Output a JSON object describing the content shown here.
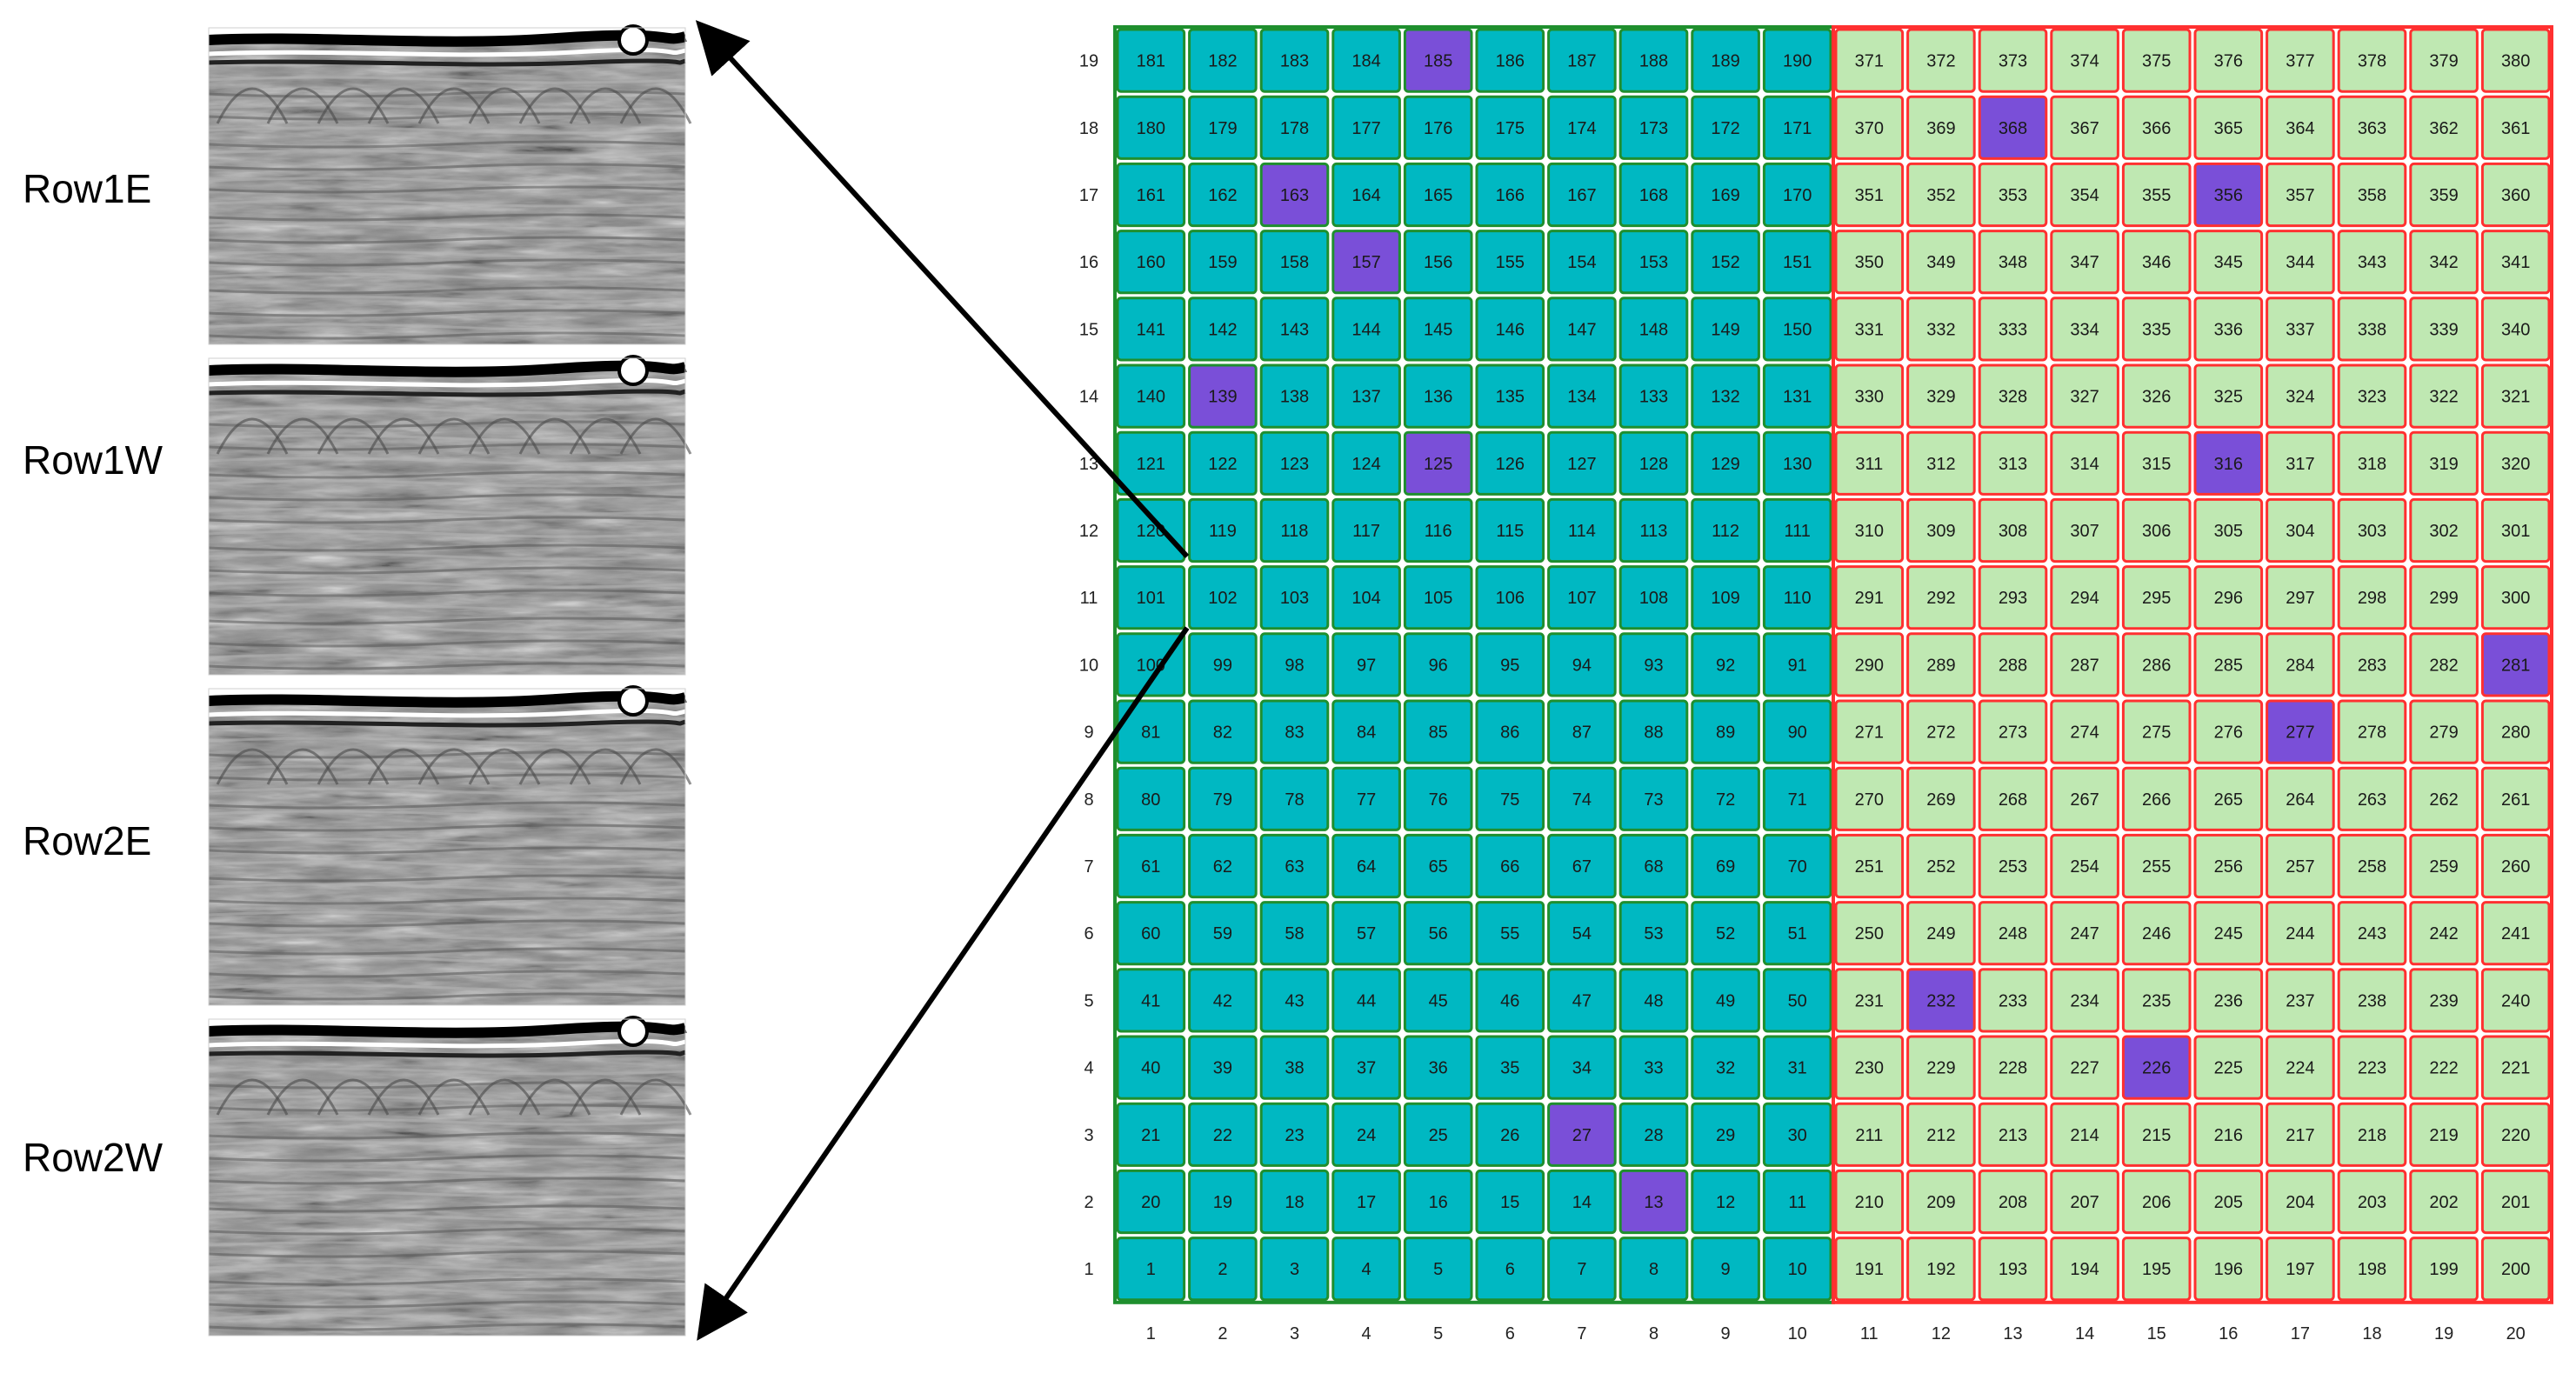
{
  "profiles": [
    {
      "label": "Row1E"
    },
    {
      "label": "Row1W"
    },
    {
      "label": "Row2E"
    },
    {
      "label": "Row2W"
    }
  ],
  "grid": {
    "columns": 20,
    "rows": 19,
    "x_tick_labels": [
      "1",
      "2",
      "3",
      "4",
      "5",
      "6",
      "7",
      "8",
      "9",
      "10",
      "11",
      "12",
      "13",
      "14",
      "15",
      "16",
      "17",
      "18",
      "19",
      "20"
    ],
    "y_tick_labels": [
      "1",
      "2",
      "3",
      "4",
      "5",
      "6",
      "7",
      "8",
      "9",
      "10",
      "11",
      "12",
      "13",
      "14",
      "15",
      "16",
      "17",
      "18",
      "19"
    ],
    "cells_left_block": [
      [
        1,
        2,
        3,
        4,
        5,
        6,
        7,
        8,
        9,
        10
      ],
      [
        20,
        19,
        18,
        17,
        16,
        15,
        14,
        13,
        12,
        11
      ],
      [
        21,
        22,
        23,
        24,
        25,
        26,
        27,
        28,
        29,
        30
      ],
      [
        40,
        39,
        38,
        37,
        36,
        35,
        34,
        33,
        32,
        31
      ],
      [
        41,
        42,
        43,
        44,
        45,
        46,
        47,
        48,
        49,
        50
      ],
      [
        60,
        59,
        58,
        57,
        56,
        55,
        54,
        53,
        52,
        51
      ],
      [
        61,
        62,
        63,
        64,
        65,
        66,
        67,
        68,
        69,
        70
      ],
      [
        80,
        79,
        78,
        77,
        76,
        75,
        74,
        73,
        72,
        71
      ],
      [
        81,
        82,
        83,
        84,
        85,
        86,
        87,
        88,
        89,
        90
      ],
      [
        100,
        99,
        98,
        97,
        96,
        95,
        94,
        93,
        92,
        91
      ],
      [
        101,
        102,
        103,
        104,
        105,
        106,
        107,
        108,
        109,
        110
      ],
      [
        120,
        119,
        118,
        117,
        116,
        115,
        114,
        113,
        112,
        111
      ],
      [
        121,
        122,
        123,
        124,
        125,
        126,
        127,
        128,
        129,
        130
      ],
      [
        140,
        139,
        138,
        137,
        136,
        135,
        134,
        133,
        132,
        131
      ],
      [
        141,
        142,
        143,
        144,
        145,
        146,
        147,
        148,
        149,
        150
      ],
      [
        160,
        159,
        158,
        157,
        156,
        155,
        154,
        153,
        152,
        151
      ],
      [
        161,
        162,
        163,
        164,
        165,
        166,
        167,
        168,
        169,
        170
      ],
      [
        180,
        179,
        178,
        177,
        176,
        175,
        174,
        173,
        172,
        171
      ],
      [
        181,
        182,
        183,
        184,
        185,
        186,
        187,
        188,
        189,
        190
      ]
    ],
    "cells_right_block": [
      [
        191,
        192,
        193,
        194,
        195,
        196,
        197,
        198,
        199,
        200
      ],
      [
        210,
        209,
        208,
        207,
        206,
        205,
        204,
        203,
        202,
        201
      ],
      [
        211,
        212,
        213,
        214,
        215,
        216,
        217,
        218,
        219,
        220
      ],
      [
        230,
        229,
        228,
        227,
        226,
        225,
        224,
        223,
        222,
        221
      ],
      [
        231,
        232,
        233,
        234,
        235,
        236,
        237,
        238,
        239,
        240
      ],
      [
        250,
        249,
        248,
        247,
        246,
        245,
        244,
        243,
        242,
        241
      ],
      [
        251,
        252,
        253,
        254,
        255,
        256,
        257,
        258,
        259,
        260
      ],
      [
        270,
        269,
        268,
        267,
        266,
        265,
        264,
        263,
        262,
        261
      ],
      [
        271,
        272,
        273,
        274,
        275,
        276,
        277,
        278,
        279,
        280
      ],
      [
        290,
        289,
        288,
        287,
        286,
        285,
        284,
        283,
        282,
        281
      ],
      [
        291,
        292,
        293,
        294,
        295,
        296,
        297,
        298,
        299,
        300
      ],
      [
        310,
        309,
        308,
        307,
        306,
        305,
        304,
        303,
        302,
        301
      ],
      [
        311,
        312,
        313,
        314,
        315,
        316,
        317,
        318,
        319,
        320
      ],
      [
        330,
        329,
        328,
        327,
        326,
        325,
        324,
        323,
        322,
        321
      ],
      [
        331,
        332,
        333,
        334,
        335,
        336,
        337,
        338,
        339,
        340
      ],
      [
        350,
        349,
        348,
        347,
        346,
        345,
        344,
        343,
        342,
        341
      ],
      [
        351,
        352,
        353,
        354,
        355,
        356,
        357,
        358,
        359,
        360
      ],
      [
        370,
        369,
        368,
        367,
        366,
        365,
        364,
        363,
        362,
        361
      ],
      [
        371,
        372,
        373,
        374,
        375,
        376,
        377,
        378,
        379,
        380
      ]
    ],
    "highlighted": [
      13,
      27,
      125,
      139,
      157,
      163,
      185,
      226,
      232,
      277,
      281,
      316,
      356,
      368
    ],
    "colors": {
      "left_fill": "#00b8c2",
      "left_border": "#1f8f2e",
      "right_fill": "#bfe8b2",
      "right_border": "#ff3030",
      "highlight_fill": "#7a4fd8"
    }
  }
}
